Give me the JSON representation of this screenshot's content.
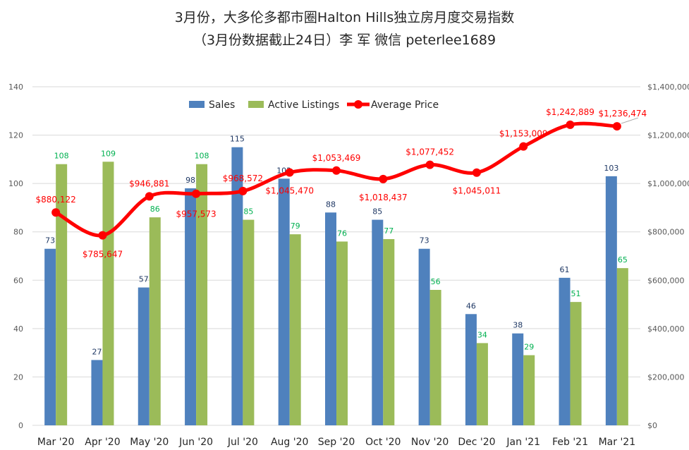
{
  "title": {
    "line1": "3月份，大多伦多都市圈Halton Hills独立房月度交易指数",
    "line2": "（3月份数据截止24日）李 军  微信  peterlee1689"
  },
  "chart_data": {
    "type": "bar",
    "categories": [
      "Mar '20",
      "Apr '20",
      "May '20",
      "Jun '20",
      "Jul '20",
      "Aug '20",
      "Sep '20",
      "Oct '20",
      "Nov '20",
      "Dec '20",
      "Jan '21",
      "Feb '21",
      "Mar '21"
    ],
    "series": [
      {
        "name": "Sales",
        "type": "bar",
        "axis": "left",
        "color": "#4F81BD",
        "label_color": "#1F3864",
        "values": [
          73,
          27,
          57,
          98,
          115,
          102,
          88,
          85,
          73,
          46,
          38,
          61,
          103
        ]
      },
      {
        "name": "Active Listings",
        "type": "bar",
        "axis": "left",
        "color": "#9BBB59",
        "label_color": "#00B050",
        "values": [
          108,
          109,
          86,
          108,
          85,
          79,
          76,
          77,
          56,
          34,
          29,
          51,
          65
        ]
      },
      {
        "name": "Average Price",
        "type": "line",
        "axis": "right",
        "color": "#FF0000",
        "label_color": "#FF0000",
        "values": [
          880122,
          785647,
          946881,
          957573,
          968572,
          1045470,
          1053469,
          1018437,
          1077452,
          1045011,
          1153009,
          1242889,
          1236474
        ],
        "labels": [
          "$880,122",
          "$785,647",
          "$946,881",
          "$957,573",
          "$968,572",
          "$1,045,470",
          "$1,053,469",
          "$1,018,437",
          "$1,077,452",
          "$1,045,011",
          "$1,153,009",
          "$1,242,889",
          "$1,236,474"
        ]
      }
    ],
    "y_left": {
      "ylim": [
        0,
        140
      ],
      "ticks": [
        "0",
        "20",
        "40",
        "60",
        "80",
        "100",
        "120",
        "140"
      ]
    },
    "y_right": {
      "ylim": [
        0,
        1400000
      ],
      "ticks": [
        "$0",
        "$200,000",
        "$400,000",
        "$600,000",
        "$800,000",
        "$1,000,000",
        "$1,200,000",
        "$1,400,000"
      ]
    },
    "grid": true,
    "legend_position": "top-center"
  }
}
